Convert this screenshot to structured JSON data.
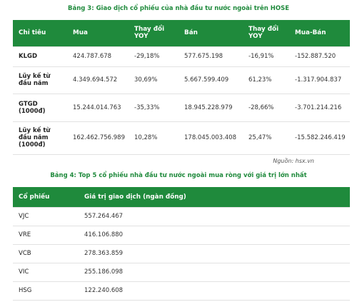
{
  "table1": {
    "title": "Bảng 3: Giao dịch cổ phiếu của nhà đầu tư nước ngoài trên HOSE",
    "header": [
      "Chỉ tiêu",
      "Mua",
      "Thay đổi YOY",
      "Bán",
      "Thay đổi YOY",
      "Mua-Bán"
    ],
    "rows": [
      [
        "KLGD",
        "424.787.678",
        "-29,18%",
        "577.675.198",
        "-16,91%",
        "-152.887.520"
      ],
      [
        "Lũy kế từ đầu năm",
        "4.349.694.572",
        "30,69%",
        "5.667.599.409",
        "61,23%",
        "-1.317.904.837"
      ],
      [
        "GTGD (1000đ)",
        "15.244.014.763",
        "-35,33%",
        "18.945.228.979",
        "-28,66%",
        "-3.701.214.216"
      ],
      [
        "Lũy kế từ đầu năm (1000đ)",
        "162.462.756.989",
        "10,28%",
        "178.045.003.408",
        "25,47%",
        "-15.582.246.419"
      ]
    ],
    "source": "Nguồn: hsx.vn"
  },
  "table2": {
    "title": "Bảng 4: Top 5 cổ phiếu nhà đầu tư nước ngoài mua ròng với giá trị lớn nhất",
    "header": [
      "Cổ phiếu",
      "Giá trị giao dịch (ngàn đồng)"
    ],
    "rows": [
      [
        "VJC",
        "557.264.467"
      ],
      [
        "VRE",
        "416.106.880"
      ],
      [
        "VCB",
        "278.363.859"
      ],
      [
        "VIC",
        "255.186.098"
      ],
      [
        "HSG",
        "122.240.608"
      ]
    ]
  }
}
